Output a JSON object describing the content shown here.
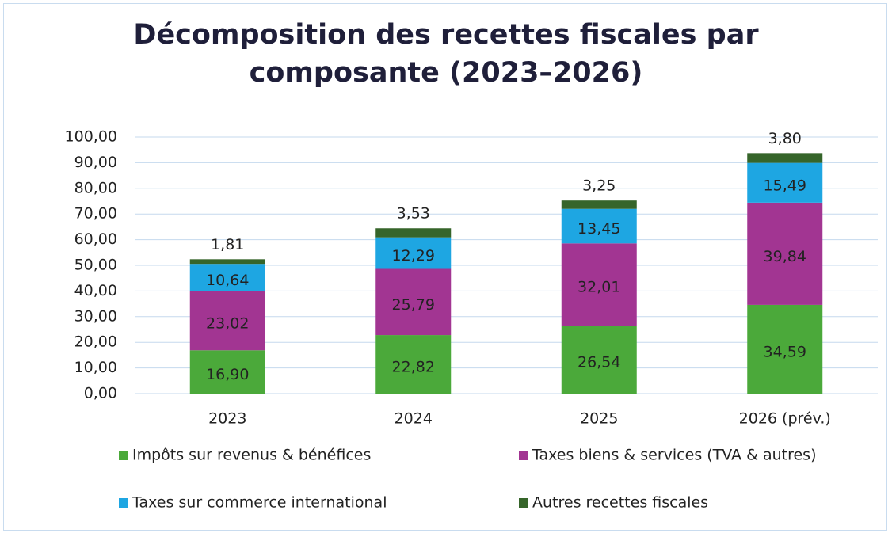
{
  "chart_data": {
    "type": "stacked_bar",
    "title": "Décomposition des recettes fiscales par composante (2023–2026)",
    "categories": [
      "2023",
      "2024",
      "2025",
      "2026 (prév.)"
    ],
    "series": [
      {
        "name": "Impôts sur revenus & bénéfices",
        "color": "#4ba93a",
        "values": [
          16.9,
          22.82,
          26.54,
          34.59
        ],
        "value_labels": [
          "16,90",
          "22,82",
          "26,54",
          "34,59"
        ]
      },
      {
        "name": "Taxes biens & services (TVA & autres)",
        "color": "#a23592",
        "values": [
          23.02,
          25.79,
          32.01,
          39.84
        ],
        "value_labels": [
          "23,02",
          "25,79",
          "32,01",
          "39,84"
        ]
      },
      {
        "name": "Taxes sur commerce international",
        "color": "#1ea6e2",
        "values": [
          10.64,
          12.29,
          13.45,
          15.49
        ],
        "value_labels": [
          "10,64",
          "12,29",
          "13,45",
          "15,49"
        ]
      },
      {
        "name": "Autres recettes fiscales",
        "color": "#36652a",
        "values": [
          1.81,
          3.53,
          3.25,
          3.8
        ],
        "value_labels": [
          "1,81",
          "3,53",
          "3,25",
          "3,80"
        ]
      }
    ],
    "ylim": [
      0,
      100
    ],
    "yticks": [
      {
        "value": 0,
        "label": "0,00"
      },
      {
        "value": 10,
        "label": "10,00"
      },
      {
        "value": 20,
        "label": "20,00"
      },
      {
        "value": 30,
        "label": "30,00"
      },
      {
        "value": 40,
        "label": "40,00"
      },
      {
        "value": 50,
        "label": "50,00"
      },
      {
        "value": 60,
        "label": "60,00"
      },
      {
        "value": 70,
        "label": "70,00"
      },
      {
        "value": 80,
        "label": "80,00"
      },
      {
        "value": 90,
        "label": "90,00"
      },
      {
        "value": 100,
        "label": "100,00"
      }
    ],
    "grid": true,
    "legend": "bottom"
  }
}
